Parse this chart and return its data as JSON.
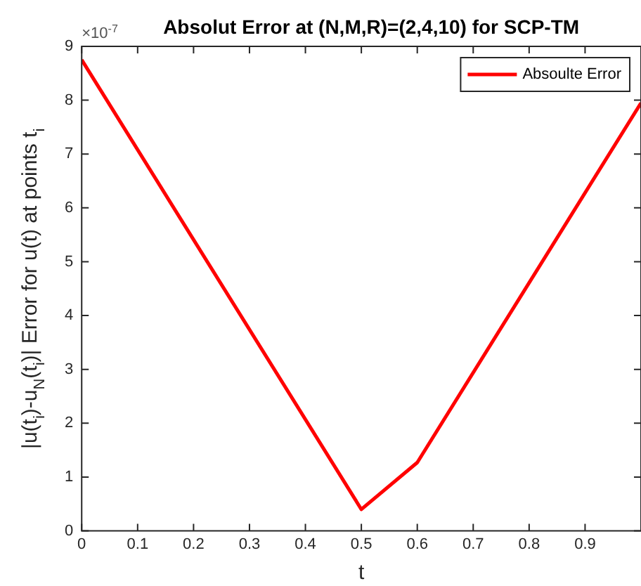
{
  "chart_data": {
    "type": "line",
    "title": "Absolut Error at (N,M,R)=(2,4,10) for SCP-TM",
    "xlabel": "t",
    "ylabel": "|u(t$_{i}$)-u$_{N}$(t$_{i}$)| Error for u(t) at points t$_{i}$",
    "annotations": [
      "×10$^{-7}$"
    ],
    "x": [
      0,
      0.5,
      0.6,
      1
    ],
    "series": [
      {
        "name": "Absoulte Error",
        "color": "#ff0000",
        "values": [
          8.75,
          0.4,
          1.27,
          7.95
        ]
      }
    ],
    "xlim": [
      0,
      1
    ],
    "xticks": [
      0,
      0.1,
      0.2,
      0.3,
      0.4,
      0.5,
      0.6,
      0.7,
      0.8,
      0.9
    ],
    "ylim": [
      0,
      9
    ],
    "yticks": [
      0,
      1,
      2,
      3,
      4,
      5,
      6,
      7,
      8,
      9
    ],
    "grid": false,
    "legend": "top right",
    "marker": "none",
    "line_style": "solid"
  }
}
